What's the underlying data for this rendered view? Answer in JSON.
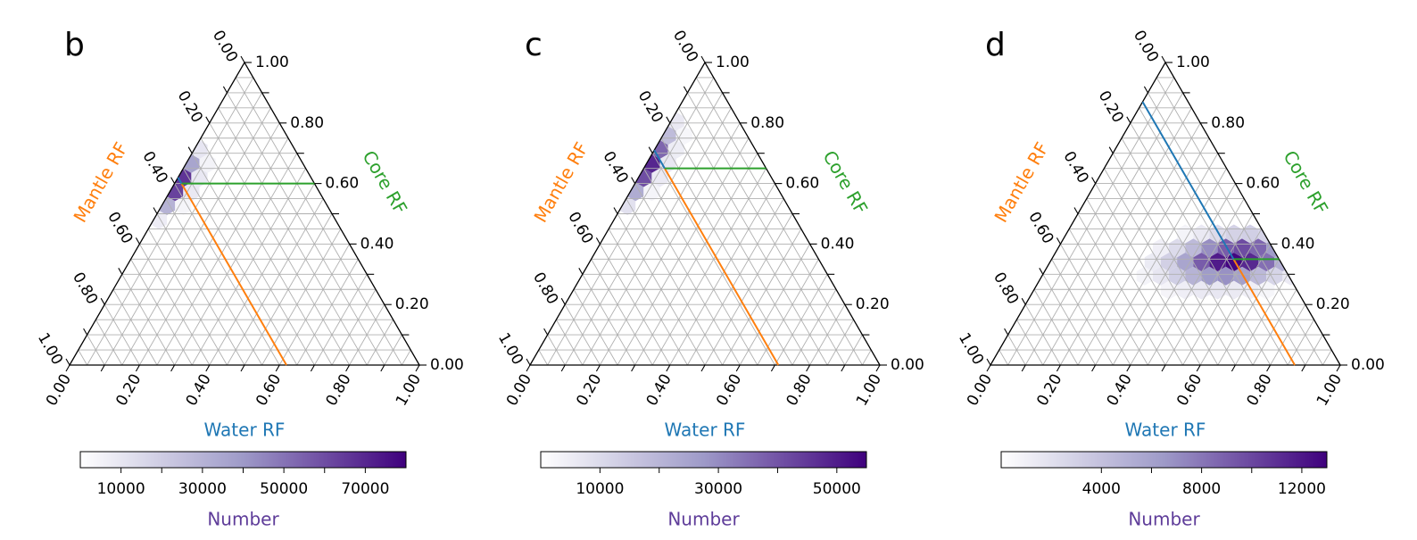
{
  "colors": {
    "water": "#1f77b4",
    "mantle": "#ff7f0e",
    "core": "#2ca02c",
    "number": "#5e3c99",
    "grid": "#b0b0b0",
    "cmap_low": "#ffffff",
    "cmap_mid": "#9e9ac8",
    "cmap_high": "#3f007d"
  },
  "chart_data": [
    {
      "type": "ternary-hexbin",
      "panel_label": "b",
      "axes": {
        "water": {
          "label": "Water RF",
          "ticks": [
            "0.00",
            "0.20",
            "0.40",
            "0.60",
            "0.80",
            "1.00"
          ],
          "range": [
            0,
            1
          ]
        },
        "core": {
          "label": "Core RF",
          "ticks": [
            "0.00",
            "0.20",
            "0.40",
            "0.60",
            "0.80",
            "1.00"
          ],
          "range": [
            0,
            1
          ]
        },
        "mantle": {
          "label": "Mantle RF",
          "ticks": [
            "0.00",
            "0.20",
            "0.40",
            "0.60",
            "0.80",
            "1.00"
          ],
          "range": [
            0,
            1
          ]
        }
      },
      "grid": true,
      "grid_step": 0.05,
      "reference_point": {
        "water": 0.02,
        "core": 0.6,
        "mantle": 0.38
      },
      "density_region": {
        "type": "edge",
        "core_from": 0.4,
        "core_to": 0.9,
        "peak_core": 0.6,
        "water_max": 0.04,
        "sigma": 0.08
      },
      "colorbar": {
        "label": "Number",
        "ticks": [
          "10000",
          "30000",
          "50000",
          "70000"
        ],
        "tick_values": [
          10000,
          30000,
          50000,
          70000
        ],
        "vmin": 0,
        "vmax": 80000
      }
    },
    {
      "type": "ternary-hexbin",
      "panel_label": "c",
      "axes": {
        "water": {
          "label": "Water RF",
          "ticks": [
            "0.00",
            "0.20",
            "0.40",
            "0.60",
            "0.80",
            "1.00"
          ],
          "range": [
            0,
            1
          ]
        },
        "core": {
          "label": "Core RF",
          "ticks": [
            "0.00",
            "0.20",
            "0.40",
            "0.60",
            "0.80",
            "1.00"
          ],
          "range": [
            0,
            1
          ]
        },
        "mantle": {
          "label": "Mantle RF",
          "ticks": [
            "0.00",
            "0.20",
            "0.40",
            "0.60",
            "0.80",
            "1.00"
          ],
          "range": [
            0,
            1
          ]
        }
      },
      "grid": true,
      "grid_step": 0.05,
      "reference_point": {
        "water": 0.06,
        "core": 0.65,
        "mantle": 0.29
      },
      "density_region": {
        "type": "edge",
        "core_from": 0.45,
        "core_to": 0.98,
        "peak_core": 0.66,
        "water_max": 0.04,
        "sigma": 0.1
      },
      "colorbar": {
        "label": "Number",
        "ticks": [
          "10000",
          "30000",
          "50000"
        ],
        "tick_values": [
          10000,
          30000,
          50000
        ],
        "vmin": 0,
        "vmax": 55000
      }
    },
    {
      "type": "ternary-hexbin",
      "panel_label": "d",
      "axes": {
        "water": {
          "label": "Water RF",
          "ticks": [
            "0.00",
            "0.20",
            "0.40",
            "0.60",
            "0.80",
            "1.00"
          ],
          "range": [
            0,
            1
          ]
        },
        "core": {
          "label": "Core RF",
          "ticks": [
            "0.00",
            "0.20",
            "0.40",
            "0.60",
            "0.80",
            "1.00"
          ],
          "range": [
            0,
            1
          ]
        },
        "mantle": {
          "label": "Mantle RF",
          "ticks": [
            "0.00",
            "0.20",
            "0.40",
            "0.60",
            "0.80",
            "1.00"
          ],
          "range": [
            0,
            1
          ]
        }
      },
      "grid": true,
      "grid_step": 0.05,
      "reference_point": {
        "water": 0.52,
        "core": 0.35,
        "mantle": 0.13
      },
      "density_region": {
        "type": "blob",
        "center_water": 0.52,
        "center_core": 0.35,
        "sigma_water": 0.15,
        "sigma_core": 0.07
      },
      "colorbar": {
        "label": "Number",
        "ticks": [
          "4000",
          "8000",
          "12000"
        ],
        "tick_values": [
          4000,
          8000,
          12000
        ],
        "vmin": 0,
        "vmax": 13000
      }
    }
  ]
}
